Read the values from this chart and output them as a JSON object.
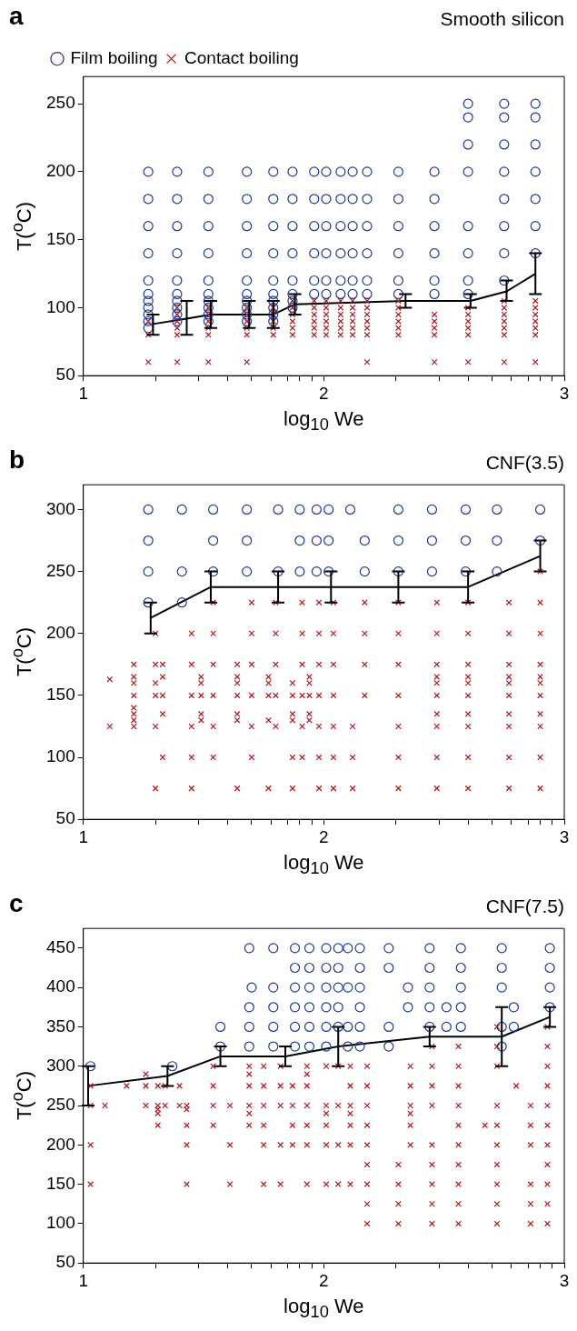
{
  "chart_data": [
    {
      "type": "scatter",
      "title": "Smooth silicon",
      "annotations": [
        "a"
      ],
      "xlabel": "log$_{10}$ We",
      "ylabel": "T($^{o}$C)",
      "legend": "top left",
      "xlim": [
        1,
        3
      ],
      "xticks": [
        1,
        {
          "value": 1.3,
          "label": null
        },
        {
          "value": 1.48,
          "label": null
        },
        {
          "value": 1.6,
          "label": null
        },
        {
          "value": 1.7,
          "label": null
        },
        {
          "value": 1.78,
          "label": null
        },
        {
          "value": 1.85,
          "label": null
        },
        {
          "value": 1.9,
          "label": null
        },
        {
          "value": 1.95,
          "label": null
        },
        2,
        {
          "value": 2.3,
          "label": null
        },
        {
          "value": 2.48,
          "label": null
        },
        {
          "value": 2.6,
          "label": null
        },
        {
          "value": 2.7,
          "label": null
        },
        {
          "value": 2.78,
          "label": null
        },
        {
          "value": 2.85,
          "label": null
        },
        {
          "value": 2.9,
          "label": null
        },
        {
          "value": 2.95,
          "label": null
        },
        3
      ],
      "ylim": [
        50,
        270
      ],
      "yticks": [
        50,
        100,
        150,
        200,
        250
      ],
      "series": [
        {
          "name": "Film boiling",
          "color": "#1f3a93",
          "marker": "circle",
          "x": [
            1.27,
            1.27,
            1.27,
            1.27,
            1.27,
            1.27,
            1.27,
            1.27,
            1.27,
            1.27,
            1.27,
            1.39,
            1.39,
            1.39,
            1.39,
            1.39,
            1.39,
            1.39,
            1.39,
            1.39,
            1.39,
            1.52,
            1.52,
            1.52,
            1.52,
            1.52,
            1.52,
            1.52,
            1.52,
            1.52,
            1.52,
            1.68,
            1.68,
            1.68,
            1.68,
            1.68,
            1.68,
            1.68,
            1.68,
            1.68,
            1.68,
            1.79,
            1.79,
            1.79,
            1.79,
            1.79,
            1.79,
            1.79,
            1.79,
            1.79,
            1.79,
            1.87,
            1.87,
            1.87,
            1.87,
            1.87,
            1.87,
            1.87,
            1.87,
            1.96,
            1.96,
            1.96,
            1.96,
            1.96,
            1.96,
            2.01,
            2.01,
            2.01,
            2.01,
            2.01,
            2.01,
            2.07,
            2.07,
            2.07,
            2.07,
            2.07,
            2.07,
            2.12,
            2.12,
            2.12,
            2.12,
            2.12,
            2.12,
            2.18,
            2.18,
            2.18,
            2.18,
            2.18,
            2.18,
            2.31,
            2.31,
            2.31,
            2.31,
            2.31,
            2.31,
            2.46,
            2.46,
            2.46,
            2.46,
            2.46,
            2.46,
            2.6,
            2.6,
            2.6,
            2.6,
            2.6,
            2.6,
            2.6,
            2.6,
            2.75,
            2.75,
            2.75,
            2.75,
            2.75,
            2.75,
            2.75,
            2.75,
            2.88,
            2.88,
            2.88,
            2.88,
            2.88,
            2.88,
            2.88
          ],
          "values": [
            85,
            90,
            95,
            100,
            105,
            110,
            120,
            140,
            160,
            180,
            200,
            90,
            95,
            100,
            105,
            110,
            120,
            140,
            160,
            180,
            200,
            90,
            95,
            100,
            105,
            110,
            120,
            140,
            160,
            180,
            200,
            90,
            95,
            100,
            105,
            110,
            120,
            140,
            160,
            180,
            200,
            90,
            95,
            100,
            105,
            110,
            120,
            140,
            160,
            180,
            200,
            100,
            105,
            110,
            120,
            140,
            160,
            180,
            200,
            110,
            120,
            140,
            160,
            180,
            200,
            110,
            120,
            140,
            160,
            180,
            200,
            110,
            120,
            140,
            160,
            180,
            200,
            110,
            120,
            140,
            160,
            180,
            200,
            110,
            120,
            140,
            160,
            180,
            200,
            110,
            120,
            140,
            160,
            180,
            200,
            110,
            120,
            140,
            160,
            180,
            200,
            110,
            120,
            140,
            160,
            200,
            220,
            240,
            250,
            120,
            140,
            160,
            180,
            200,
            220,
            240,
            250,
            140,
            160,
            180,
            200,
            220,
            240,
            250
          ]
        },
        {
          "name": "Contact boiling",
          "color": "#b0161e",
          "marker": "cross",
          "x": [
            1.27,
            1.27,
            1.27,
            1.39,
            1.39,
            1.39,
            1.39,
            1.39,
            1.39,
            1.52,
            1.52,
            1.52,
            1.52,
            1.52,
            1.52,
            1.68,
            1.68,
            1.68,
            1.68,
            1.68,
            1.68,
            1.79,
            1.79,
            1.79,
            1.79,
            1.79,
            1.87,
            1.87,
            1.87,
            1.87,
            1.87,
            1.87,
            1.96,
            1.96,
            1.96,
            1.96,
            1.96,
            1.96,
            2.01,
            2.01,
            2.01,
            2.01,
            2.01,
            2.01,
            2.07,
            2.07,
            2.07,
            2.07,
            2.07,
            2.07,
            2.12,
            2.12,
            2.12,
            2.12,
            2.12,
            2.12,
            2.18,
            2.18,
            2.18,
            2.18,
            2.18,
            2.18,
            2.18,
            2.31,
            2.31,
            2.31,
            2.31,
            2.31,
            2.31,
            2.46,
            2.46,
            2.46,
            2.46,
            2.46,
            2.6,
            2.6,
            2.6,
            2.6,
            2.6,
            2.6,
            2.75,
            2.75,
            2.75,
            2.75,
            2.75,
            2.75,
            2.75,
            2.88,
            2.88,
            2.88,
            2.88,
            2.88,
            2.88,
            2.88
          ],
          "values": [
            60,
            80,
            90,
            60,
            80,
            85,
            90,
            95,
            100,
            60,
            80,
            85,
            90,
            95,
            100,
            60,
            80,
            85,
            90,
            95,
            100,
            80,
            85,
            90,
            95,
            100,
            80,
            85,
            90,
            95,
            100,
            105,
            80,
            85,
            90,
            95,
            100,
            105,
            80,
            85,
            90,
            95,
            100,
            105,
            80,
            85,
            90,
            95,
            100,
            105,
            80,
            85,
            90,
            95,
            100,
            105,
            60,
            80,
            85,
            90,
            95,
            100,
            105,
            80,
            85,
            90,
            95,
            100,
            105,
            60,
            80,
            85,
            90,
            95,
            60,
            80,
            85,
            90,
            95,
            100,
            60,
            80,
            85,
            90,
            95,
            100,
            105,
            60,
            80,
            85,
            90,
            95,
            100,
            105
          ]
        },
        {
          "type": "line",
          "color": "#000000",
          "marker": "none",
          "x": [
            1.29,
            1.43,
            1.53,
            1.69,
            1.79,
            1.88,
            2.34,
            2.61,
            2.76,
            2.88
          ],
          "values": [
            88,
            92,
            95,
            95,
            95,
            102.5,
            105,
            105,
            112,
            125
          ],
          "errors": [
            [
              80,
              95
            ],
            [
              80,
              105
            ],
            [
              85,
              105
            ],
            [
              85,
              105
            ],
            [
              85,
              105
            ],
            [
              95,
              110
            ],
            [
              100,
              110
            ],
            [
              100,
              110
            ],
            [
              105,
              120
            ],
            [
              110,
              140
            ]
          ]
        }
      ]
    },
    {
      "type": "scatter",
      "title": "CNF(3.5)",
      "annotations": [
        "b"
      ],
      "xlabel": "log$_{10}$ We",
      "ylabel": "T($^{o}$C)",
      "xlim": [
        1,
        3
      ],
      "xticks": [
        1,
        {
          "value": 1.3,
          "label": null
        },
        {
          "value": 1.48,
          "label": null
        },
        {
          "value": 1.6,
          "label": null
        },
        {
          "value": 1.7,
          "label": null
        },
        {
          "value": 1.78,
          "label": null
        },
        {
          "value": 1.85,
          "label": null
        },
        {
          "value": 1.9,
          "label": null
        },
        {
          "value": 1.95,
          "label": null
        },
        2,
        {
          "value": 2.3,
          "label": null
        },
        {
          "value": 2.48,
          "label": null
        },
        {
          "value": 2.6,
          "label": null
        },
        {
          "value": 2.7,
          "label": null
        },
        {
          "value": 2.78,
          "label": null
        },
        {
          "value": 2.85,
          "label": null
        },
        {
          "value": 2.9,
          "label": null
        },
        {
          "value": 2.95,
          "label": null
        },
        3
      ],
      "ylim": [
        50,
        320
      ],
      "yticks": [
        50,
        100,
        150,
        200,
        250,
        300
      ],
      "series": [
        {
          "color": "#1f3a93",
          "marker": "circle",
          "x": [
            1.27,
            1.27,
            1.27,
            1.27,
            1.41,
            1.41,
            1.41,
            1.54,
            1.54,
            1.54,
            1.68,
            1.68,
            1.68,
            1.81,
            1.81,
            1.9,
            1.9,
            1.9,
            1.97,
            1.97,
            1.97,
            2.02,
            2.02,
            2.02,
            2.11,
            2.17,
            2.17,
            2.31,
            2.31,
            2.31,
            2.45,
            2.45,
            2.45,
            2.59,
            2.59,
            2.59,
            2.72,
            2.72,
            2.72,
            2.9,
            2.9
          ],
          "values": [
            225,
            250,
            275,
            300,
            225,
            250,
            300,
            250,
            275,
            300,
            250,
            275,
            300,
            250,
            300,
            250,
            275,
            300,
            250,
            275,
            300,
            250,
            275,
            300,
            300,
            250,
            275,
            250,
            275,
            300,
            250,
            275,
            300,
            250,
            275,
            300,
            250,
            275,
            300,
            275,
            300
          ]
        },
        {
          "color": "#b0161e",
          "marker": "cross",
          "x": [
            1.11,
            1.11,
            1.21,
            1.21,
            1.21,
            1.21,
            1.21,
            1.21,
            1.21,
            1.21,
            1.3,
            1.3,
            1.3,
            1.3,
            1.3,
            1.3,
            1.33,
            1.33,
            1.33,
            1.33,
            1.33,
            1.45,
            1.45,
            1.45,
            1.45,
            1.45,
            1.45,
            1.49,
            1.49,
            1.49,
            1.49,
            1.49,
            1.54,
            1.54,
            1.54,
            1.54,
            1.54,
            1.54,
            1.64,
            1.64,
            1.64,
            1.64,
            1.64,
            1.64,
            1.64,
            1.7,
            1.7,
            1.7,
            1.7,
            1.7,
            1.7,
            1.77,
            1.77,
            1.77,
            1.77,
            1.77,
            1.8,
            1.8,
            1.8,
            1.8,
            1.8,
            1.87,
            1.87,
            1.87,
            1.87,
            1.87,
            1.87,
            1.91,
            1.91,
            1.91,
            1.91,
            1.91,
            1.91,
            1.94,
            1.94,
            1.94,
            1.94,
            1.94,
            1.98,
            1.98,
            1.98,
            1.98,
            1.98,
            1.98,
            1.98,
            2.04,
            2.04,
            2.04,
            2.04,
            2.04,
            2.04,
            2.04,
            2.12,
            2.12,
            2.12,
            2.17,
            2.17,
            2.17,
            2.17,
            2.31,
            2.31,
            2.31,
            2.31,
            2.31,
            2.31,
            2.31,
            2.47,
            2.47,
            2.47,
            2.47,
            2.47,
            2.47,
            2.47,
            2.47,
            2.47,
            2.47,
            2.6,
            2.6,
            2.6,
            2.6,
            2.6,
            2.6,
            2.6,
            2.6,
            2.6,
            2.6,
            2.77,
            2.77,
            2.77,
            2.77,
            2.77,
            2.77,
            2.77,
            2.77,
            2.77,
            2.77,
            2.9,
            2.9,
            2.9,
            2.9,
            2.9,
            2.9,
            2.9,
            2.9,
            2.9,
            2.9,
            2.9
          ],
          "values": [
            125,
            163,
            125,
            130,
            135,
            140,
            150,
            160,
            165,
            175,
            75,
            125,
            150,
            160,
            175,
            200,
            100,
            135,
            150,
            165,
            175,
            75,
            100,
            125,
            150,
            175,
            200,
            130,
            135,
            150,
            160,
            165,
            100,
            125,
            150,
            175,
            200,
            225,
            75,
            130,
            135,
            150,
            160,
            165,
            175,
            100,
            125,
            150,
            175,
            200,
            225,
            75,
            130,
            150,
            160,
            165,
            125,
            150,
            175,
            200,
            225,
            75,
            100,
            130,
            135,
            150,
            160,
            100,
            125,
            150,
            175,
            200,
            225,
            130,
            135,
            150,
            160,
            165,
            75,
            100,
            125,
            150,
            175,
            200,
            225,
            75,
            100,
            125,
            150,
            175,
            200,
            225,
            75,
            100,
            125,
            150,
            175,
            200,
            225,
            75,
            100,
            125,
            150,
            175,
            200,
            225,
            75,
            100,
            125,
            135,
            150,
            160,
            165,
            175,
            200,
            225,
            75,
            100,
            125,
            135,
            150,
            160,
            165,
            175,
            200,
            225,
            75,
            100,
            125,
            135,
            150,
            160,
            165,
            175,
            200,
            225,
            75,
            100,
            125,
            135,
            150,
            160,
            165,
            175,
            200,
            225,
            250
          ]
        },
        {
          "type": "line",
          "color": "#000000",
          "marker": "none",
          "x": [
            1.28,
            1.53,
            1.81,
            2.03,
            2.31,
            2.6,
            2.9
          ],
          "values": [
            212.5,
            237.5,
            237.5,
            237.5,
            237.5,
            237.5,
            262.5
          ],
          "errors": [
            [
              200,
              225
            ],
            [
              225,
              250
            ],
            [
              225,
              250
            ],
            [
              225,
              250
            ],
            [
              225,
              250
            ],
            [
              225,
              250
            ],
            [
              250,
              275
            ]
          ]
        }
      ]
    },
    {
      "type": "scatter",
      "title": "CNF(7.5)",
      "annotations": [
        "c"
      ],
      "xlabel": "log$_{10}$ We",
      "ylabel": "T($^{o}$C)",
      "xlim": [
        1,
        3
      ],
      "xticks": [
        1,
        {
          "value": 1.3,
          "label": null
        },
        {
          "value": 1.48,
          "label": null
        },
        {
          "value": 1.6,
          "label": null
        },
        {
          "value": 1.7,
          "label": null
        },
        {
          "value": 1.78,
          "label": null
        },
        {
          "value": 1.85,
          "label": null
        },
        {
          "value": 1.9,
          "label": null
        },
        {
          "value": 1.95,
          "label": null
        },
        2,
        {
          "value": 2.3,
          "label": null
        },
        {
          "value": 2.48,
          "label": null
        },
        {
          "value": 2.6,
          "label": null
        },
        {
          "value": 2.7,
          "label": null
        },
        {
          "value": 2.78,
          "label": null
        },
        {
          "value": 2.85,
          "label": null
        },
        {
          "value": 2.9,
          "label": null
        },
        {
          "value": 2.95,
          "label": null
        },
        3
      ],
      "ylim": [
        50,
        475
      ],
      "yticks": [
        50,
        100,
        150,
        200,
        250,
        300,
        350,
        400,
        450
      ],
      "series": [
        {
          "color": "#1f3a93",
          "marker": "circle",
          "x": [
            1.03,
            1.37,
            1.57,
            1.57,
            1.69,
            1.69,
            1.69,
            1.69,
            1.7,
            1.79,
            1.79,
            1.79,
            1.79,
            1.79,
            1.88,
            1.88,
            1.88,
            1.88,
            1.88,
            1.88,
            1.94,
            1.94,
            1.94,
            1.94,
            1.94,
            1.94,
            2.01,
            2.01,
            2.01,
            2.01,
            2.01,
            2.01,
            2.06,
            2.06,
            2.06,
            2.06,
            2.06,
            2.1,
            2.1,
            2.1,
            2.1,
            2.15,
            2.15,
            2.15,
            2.15,
            2.15,
            2.15,
            2.27,
            2.27,
            2.27,
            2.27,
            2.35,
            2.35,
            2.44,
            2.44,
            2.44,
            2.44,
            2.44,
            2.51,
            2.51,
            2.57,
            2.57,
            2.57,
            2.57,
            2.57,
            2.74,
            2.74,
            2.74,
            2.74,
            2.74,
            2.79,
            2.79,
            2.94,
            2.94,
            2.94,
            2.94
          ],
          "values": [
            300,
            300,
            325,
            350,
            325,
            350,
            375,
            450,
            400,
            325,
            350,
            375,
            400,
            450,
            325,
            350,
            375,
            400,
            425,
            450,
            325,
            350,
            375,
            400,
            425,
            450,
            325,
            350,
            375,
            400,
            425,
            450,
            350,
            375,
            400,
            425,
            450,
            325,
            350,
            400,
            450,
            325,
            350,
            375,
            400,
            425,
            450,
            325,
            350,
            425,
            450,
            375,
            400,
            350,
            375,
            400,
            425,
            450,
            350,
            375,
            350,
            375,
            400,
            425,
            450,
            325,
            350,
            400,
            425,
            450,
            350,
            375,
            375,
            400,
            425,
            450
          ]
        },
        {
          "color": "#b0161e",
          "marker": "cross",
          "x": [
            1.03,
            1.03,
            1.03,
            1.03,
            1.09,
            1.18,
            1.26,
            1.26,
            1.26,
            1.31,
            1.31,
            1.31,
            1.31,
            1.31,
            1.34,
            1.34,
            1.4,
            1.4,
            1.43,
            1.43,
            1.43,
            1.43,
            1.43,
            1.54,
            1.54,
            1.54,
            1.54,
            1.61,
            1.61,
            1.61,
            1.69,
            1.69,
            1.69,
            1.69,
            1.69,
            1.69,
            1.75,
            1.75,
            1.75,
            1.75,
            1.75,
            1.75,
            1.82,
            1.82,
            1.82,
            1.82,
            1.82,
            1.87,
            1.87,
            1.87,
            1.87,
            1.93,
            1.93,
            1.93,
            1.93,
            1.93,
            1.93,
            1.93,
            2.01,
            2.01,
            2.01,
            2.01,
            2.01,
            2.01,
            2.06,
            2.06,
            2.06,
            2.06,
            2.11,
            2.11,
            2.11,
            2.11,
            2.11,
            2.11,
            2.11,
            2.18,
            2.18,
            2.18,
            2.18,
            2.18,
            2.18,
            2.18,
            2.18,
            2.18,
            2.31,
            2.31,
            2.31,
            2.31,
            2.36,
            2.36,
            2.36,
            2.36,
            2.36,
            2.36,
            2.45,
            2.45,
            2.45,
            2.45,
            2.45,
            2.45,
            2.45,
            2.45,
            2.45,
            2.56,
            2.56,
            2.56,
            2.56,
            2.56,
            2.56,
            2.56,
            2.56,
            2.56,
            2.56,
            2.67,
            2.72,
            2.72,
            2.72,
            2.72,
            2.72,
            2.72,
            2.72,
            2.72,
            2.72,
            2.72,
            2.8,
            2.86,
            2.86,
            2.86,
            2.86,
            2.86,
            2.86,
            2.93,
            2.93,
            2.93,
            2.93,
            2.93,
            2.93,
            2.93,
            2.93,
            2.93,
            2.93,
            2.93
          ],
          "values": [
            150,
            200,
            250,
            275,
            250,
            275,
            250,
            275,
            290,
            225,
            240,
            245,
            250,
            275,
            250,
            275,
            250,
            275,
            150,
            200,
            225,
            245,
            250,
            225,
            250,
            275,
            300,
            150,
            200,
            250,
            225,
            240,
            250,
            275,
            290,
            300,
            150,
            200,
            225,
            250,
            275,
            300,
            150,
            200,
            250,
            275,
            300,
            200,
            225,
            250,
            275,
            150,
            200,
            225,
            250,
            275,
            290,
            300,
            150,
            200,
            225,
            240,
            250,
            300,
            150,
            200,
            250,
            300,
            150,
            200,
            225,
            240,
            250,
            275,
            300,
            100,
            125,
            150,
            175,
            200,
            225,
            250,
            275,
            300,
            100,
            125,
            150,
            175,
            200,
            225,
            240,
            250,
            275,
            300,
            100,
            125,
            150,
            175,
            200,
            250,
            275,
            300,
            325,
            100,
            125,
            150,
            175,
            200,
            225,
            250,
            275,
            300,
            325,
            225,
            100,
            125,
            150,
            175,
            200,
            225,
            250,
            300,
            325,
            350,
            275,
            100,
            125,
            150,
            200,
            225,
            250,
            100,
            125,
            150,
            175,
            200,
            225,
            250,
            275,
            300,
            325,
            350
          ]
        },
        {
          "type": "line",
          "color": "#000000",
          "marker": "none",
          "x": [
            1.02,
            1.35,
            1.57,
            1.84,
            2.06,
            2.44,
            2.74,
            2.94
          ],
          "values": [
            275,
            287.5,
            312.5,
            312.5,
            325,
            337.5,
            337.5,
            362.5
          ],
          "errors": [
            [
              250,
              300
            ],
            [
              275,
              300
            ],
            [
              300,
              325
            ],
            [
              300,
              325
            ],
            [
              300,
              350
            ],
            [
              325,
              350
            ],
            [
              300,
              375
            ],
            [
              350,
              375
            ]
          ]
        }
      ]
    }
  ]
}
